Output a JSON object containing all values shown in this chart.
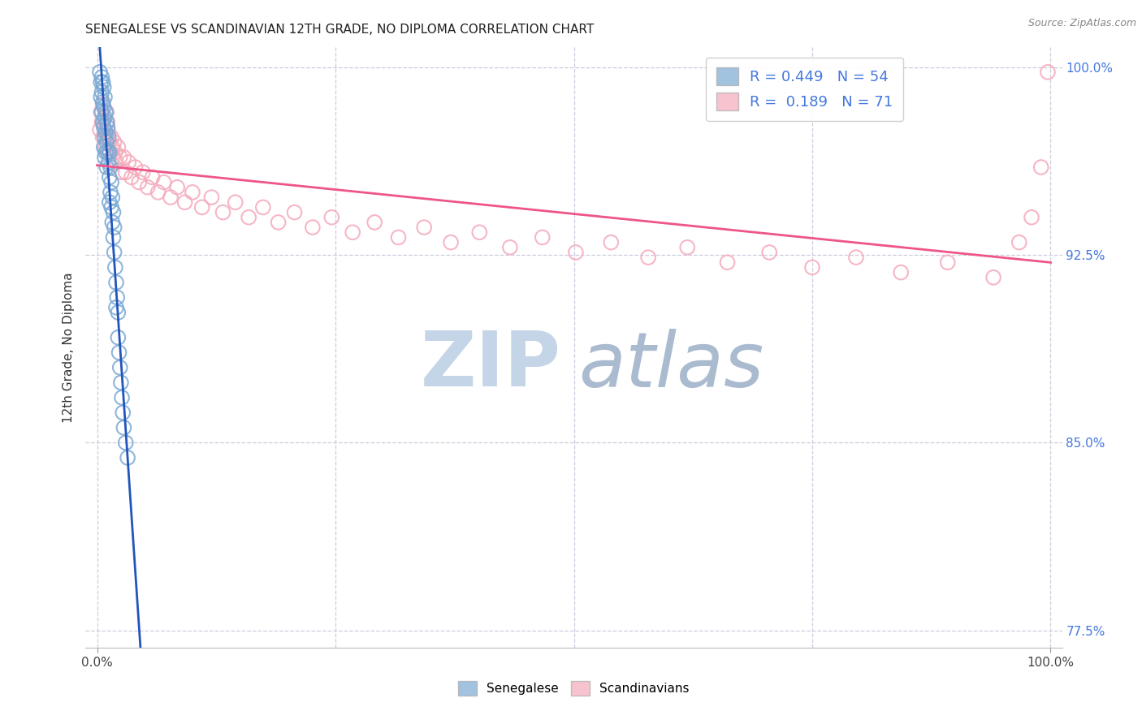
{
  "title": "SENEGALESE VS SCANDINAVIAN 12TH GRADE, NO DIPLOMA CORRELATION CHART",
  "source": "Source: ZipAtlas.com",
  "ylabel": "12th Grade, No Diploma",
  "blue_color": "#7BAAD4",
  "pink_color": "#F4AABB",
  "blue_line_color": "#2255BB",
  "pink_line_color": "#EE5588",
  "text_blue": "#4477DD",
  "watermark_zip_color": "#C5D5E8",
  "watermark_atlas_color": "#AABBD0",
  "background": "#FFFFFF",
  "grid_color": "#CCCCDD",
  "ylim": [
    0.768,
    1.008
  ],
  "xlim": [
    -0.012,
    1.012
  ],
  "yticks_right": [
    0.775,
    0.85,
    0.925,
    1.0
  ],
  "ytick_right_labels": [
    "77.5%",
    "85.0%",
    "92.5%",
    "100.0%"
  ],
  "xtick_positions": [
    0.0,
    1.0
  ],
  "xtick_labels": [
    "0.0%",
    "100.0%"
  ],
  "senegalese_R": 0.449,
  "senegalese_N": 54,
  "scandinavian_R": 0.189,
  "scandinavian_N": 71,
  "senegalese_x": [
    0.003,
    0.004,
    0.004,
    0.005,
    0.005,
    0.005,
    0.006,
    0.006,
    0.006,
    0.007,
    0.007,
    0.007,
    0.007,
    0.008,
    0.008,
    0.008,
    0.008,
    0.009,
    0.009,
    0.009,
    0.01,
    0.01,
    0.01,
    0.011,
    0.011,
    0.012,
    0.012,
    0.013,
    0.013,
    0.013,
    0.014,
    0.014,
    0.015,
    0.015,
    0.016,
    0.016,
    0.017,
    0.017,
    0.018,
    0.018,
    0.019,
    0.02,
    0.02,
    0.021,
    0.022,
    0.022,
    0.023,
    0.024,
    0.025,
    0.026,
    0.027,
    0.028,
    0.03,
    0.032
  ],
  "senegalese_y": [
    0.998,
    0.994,
    0.988,
    0.996,
    0.99,
    0.982,
    0.994,
    0.986,
    0.978,
    0.992,
    0.984,
    0.976,
    0.968,
    0.988,
    0.98,
    0.972,
    0.964,
    0.982,
    0.974,
    0.966,
    0.978,
    0.97,
    0.96,
    0.976,
    0.966,
    0.972,
    0.962,
    0.966,
    0.956,
    0.946,
    0.96,
    0.95,
    0.954,
    0.944,
    0.948,
    0.938,
    0.942,
    0.932,
    0.936,
    0.926,
    0.92,
    0.914,
    0.904,
    0.908,
    0.902,
    0.892,
    0.886,
    0.88,
    0.874,
    0.868,
    0.862,
    0.856,
    0.85,
    0.844
  ],
  "scandinavian_x": [
    0.003,
    0.004,
    0.005,
    0.006,
    0.006,
    0.007,
    0.008,
    0.009,
    0.01,
    0.01,
    0.011,
    0.012,
    0.013,
    0.014,
    0.015,
    0.016,
    0.017,
    0.018,
    0.019,
    0.02,
    0.022,
    0.024,
    0.026,
    0.028,
    0.03,
    0.033,
    0.036,
    0.04,
    0.044,
    0.048,
    0.053,
    0.058,
    0.064,
    0.07,
    0.077,
    0.084,
    0.092,
    0.1,
    0.11,
    0.12,
    0.132,
    0.145,
    0.159,
    0.174,
    0.19,
    0.207,
    0.226,
    0.246,
    0.268,
    0.291,
    0.316,
    0.343,
    0.371,
    0.401,
    0.433,
    0.467,
    0.502,
    0.539,
    0.578,
    0.619,
    0.661,
    0.705,
    0.75,
    0.796,
    0.843,
    0.892,
    0.94,
    0.967,
    0.98,
    0.99,
    0.997
  ],
  "scandinavian_y": [
    0.975,
    0.982,
    0.978,
    0.985,
    0.972,
    0.979,
    0.975,
    0.968,
    0.982,
    0.972,
    0.978,
    0.974,
    0.97,
    0.966,
    0.972,
    0.968,
    0.964,
    0.97,
    0.966,
    0.962,
    0.968,
    0.964,
    0.958,
    0.964,
    0.958,
    0.962,
    0.956,
    0.96,
    0.954,
    0.958,
    0.952,
    0.956,
    0.95,
    0.954,
    0.948,
    0.952,
    0.946,
    0.95,
    0.944,
    0.948,
    0.942,
    0.946,
    0.94,
    0.944,
    0.938,
    0.942,
    0.936,
    0.94,
    0.934,
    0.938,
    0.932,
    0.936,
    0.93,
    0.934,
    0.928,
    0.932,
    0.926,
    0.93,
    0.924,
    0.928,
    0.922,
    0.926,
    0.92,
    0.924,
    0.918,
    0.922,
    0.916,
    0.93,
    0.94,
    0.96,
    0.998
  ]
}
